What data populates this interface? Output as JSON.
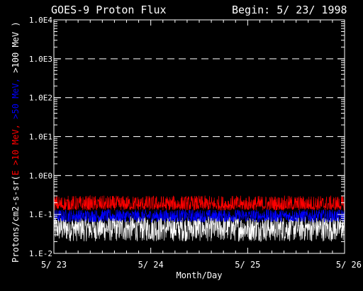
{
  "chart_data": {
    "type": "line",
    "title": "GOES-9 Proton Flux",
    "subtitle": "Begin: 5/ 23/ 1998",
    "xlabel": "Month/Day",
    "ylabel_parts": [
      {
        "text": "Protons/cm2-s-sr(",
        "color": "#ffffff"
      },
      {
        "text": "E >10 MeV,",
        "color": "#ff0000"
      },
      {
        "text": " >50 MeV,",
        "color": "#0000ff"
      },
      {
        "text": " >100 MeV )",
        "color": "#ffffff"
      }
    ],
    "xlim": [
      0,
      3
    ],
    "x_ticks": [
      {
        "value": 0,
        "label": "5/ 23"
      },
      {
        "value": 1,
        "label": "5/ 24"
      },
      {
        "value": 2,
        "label": "5/ 25"
      },
      {
        "value": 3,
        "label": "5/ 26"
      }
    ],
    "y_scale": "log",
    "ylim": [
      0.01,
      10000
    ],
    "y_ticks": [
      {
        "value": 0.01,
        "label": "1.E-2"
      },
      {
        "value": 0.1,
        "label": "1.E-1"
      },
      {
        "value": 1,
        "label": "1.0E0"
      },
      {
        "value": 10,
        "label": "1.0E1"
      },
      {
        "value": 100,
        "label": "1.0E2"
      },
      {
        "value": 1000,
        "label": "1.0E3"
      },
      {
        "value": 10000,
        "label": "1.0E4"
      }
    ],
    "dashed_gridlines": [
      1,
      10,
      100,
      1000
    ],
    "series": [
      {
        "color": "#ffffff",
        "level": 0.045,
        "spread_low": 0.45,
        "spread_high": 2.0
      },
      {
        "color": "#0000ff",
        "level": 0.09,
        "spread_low": 0.7,
        "spread_high": 1.5
      },
      {
        "color": "#ff0000",
        "level": 0.17,
        "spread_low": 0.75,
        "spread_high": 1.8
      }
    ]
  }
}
